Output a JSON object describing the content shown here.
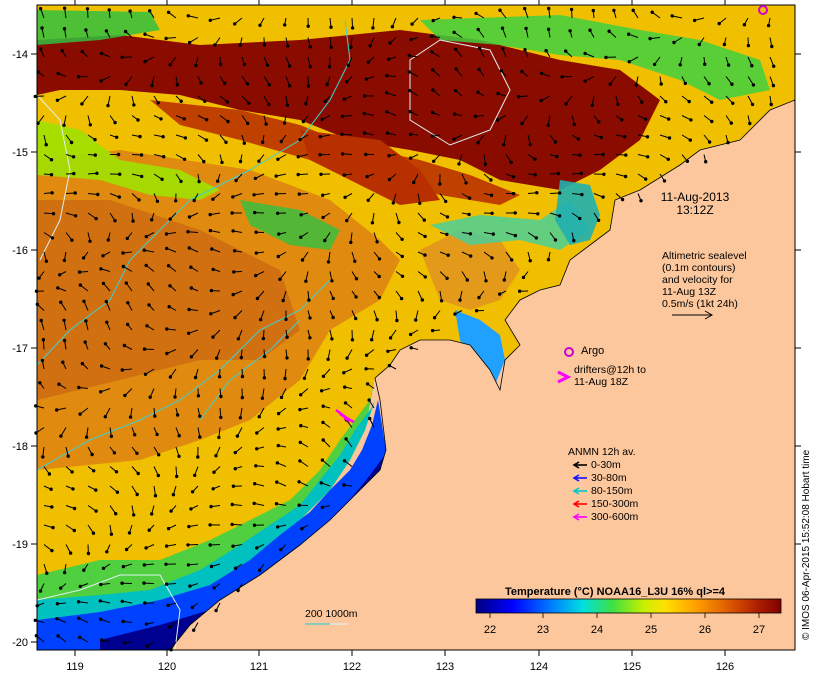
{
  "map": {
    "title_date": "11-Aug-2013",
    "title_time": "13:12Z",
    "x_ticks": [
      "119",
      "120",
      "121",
      "122",
      "123",
      "124",
      "125",
      "126"
    ],
    "y_ticks": [
      "-14",
      "-15",
      "-16",
      "-17",
      "-18",
      "-19",
      "-20"
    ],
    "sealevel_note": [
      "Altimetric sealevel",
      "(0.1m contours)",
      "and velocity for",
      "11-Aug 13Z",
      "0.5m/s (1kt 24h)"
    ],
    "argo_label": "Argo",
    "drifters_label": [
      "drifters@12h to",
      "11-Aug 18Z"
    ],
    "anmn_title": "ANMN 12h av.",
    "anmn_items": [
      {
        "label": "0-30m",
        "color": "#000000"
      },
      {
        "label": "30-80m",
        "color": "#1010ff"
      },
      {
        "label": "80-150m",
        "color": "#00c8c8"
      },
      {
        "label": "150-300m",
        "color": "#ff0000"
      },
      {
        "label": "300-600m",
        "color": "#ff00ff"
      }
    ],
    "depth_legend": "200  1000m",
    "colorbar_title": "Temperature (°C) NOAA16_L3U 16% ql>=4",
    "colorbar_ticks": [
      "22",
      "23",
      "24",
      "25",
      "26",
      "27"
    ],
    "credit": "© IMOS 06-Apr-2015 15:52:08 Hobart time",
    "colors": {
      "land": "#fcc79c",
      "cold": "#000080",
      "warm": "#800000",
      "argo": "#d000d0",
      "contour": "#40d0d0"
    }
  }
}
